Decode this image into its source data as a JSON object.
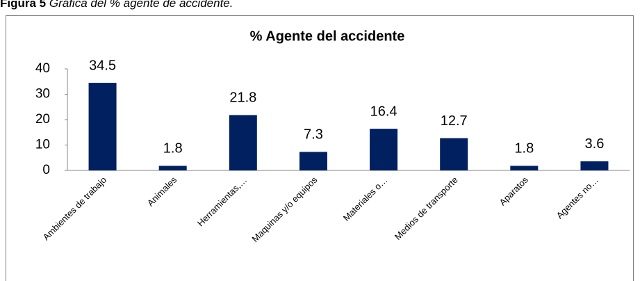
{
  "caption": {
    "label": "Figura 5",
    "text": "Gráfica del % agente de accidente."
  },
  "chart_data": {
    "type": "bar",
    "title": "% Agente del accidente",
    "categories": [
      "Ambientes de trabajo",
      "Animales",
      "Herramientas,…",
      "Maquinas y/o equipos",
      "Materiales o…",
      "Medios de transporte",
      "Aparatos",
      "Agentes no…"
    ],
    "values": [
      34.5,
      1.8,
      21.8,
      7.3,
      16.4,
      12.7,
      1.8,
      3.6
    ],
    "color": "#002060",
    "ylim": [
      0,
      40
    ],
    "yticks": [
      0,
      10,
      20,
      30,
      40
    ],
    "grid": false,
    "data_labels": true
  }
}
